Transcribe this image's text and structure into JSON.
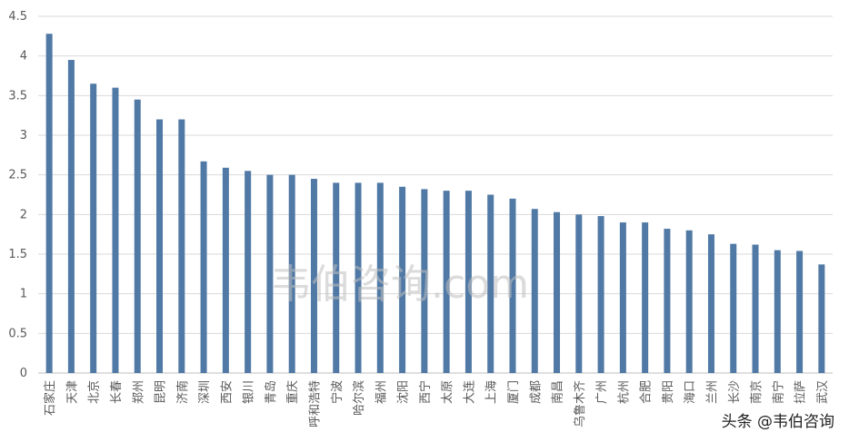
{
  "chart_data": {
    "type": "bar",
    "categories": [
      "石家庄",
      "天津",
      "北京",
      "长春",
      "郑州",
      "昆明",
      "济南",
      "深圳",
      "西安",
      "银川",
      "青岛",
      "重庆",
      "呼和浩特",
      "宁波",
      "哈尔滨",
      "福州",
      "沈阳",
      "西宁",
      "太原",
      "大连",
      "上海",
      "厦门",
      "成都",
      "南昌",
      "乌鲁木齐",
      "广州",
      "杭州",
      "合肥",
      "贵阳",
      "海口",
      "兰州",
      "长沙",
      "南京",
      "南宁",
      "拉萨",
      "武汉"
    ],
    "values": [
      4.28,
      3.95,
      3.65,
      3.6,
      3.45,
      3.2,
      3.2,
      2.67,
      2.59,
      2.55,
      2.5,
      2.5,
      2.45,
      2.4,
      2.4,
      2.4,
      2.35,
      2.32,
      2.3,
      2.3,
      2.25,
      2.2,
      2.07,
      2.03,
      2.0,
      1.98,
      1.9,
      1.9,
      1.82,
      1.8,
      1.75,
      1.63,
      1.62,
      1.55,
      1.54,
      1.37
    ],
    "color": "#5079a5",
    "ylim": [
      0,
      4.5
    ],
    "yticks": [
      0,
      0.5,
      1,
      1.5,
      2,
      2.5,
      3,
      3.5,
      4,
      4.5
    ],
    "grid": true,
    "watermarks": [
      "韦伯咨询.com",
      "头条 @韦伯咨询"
    ]
  }
}
